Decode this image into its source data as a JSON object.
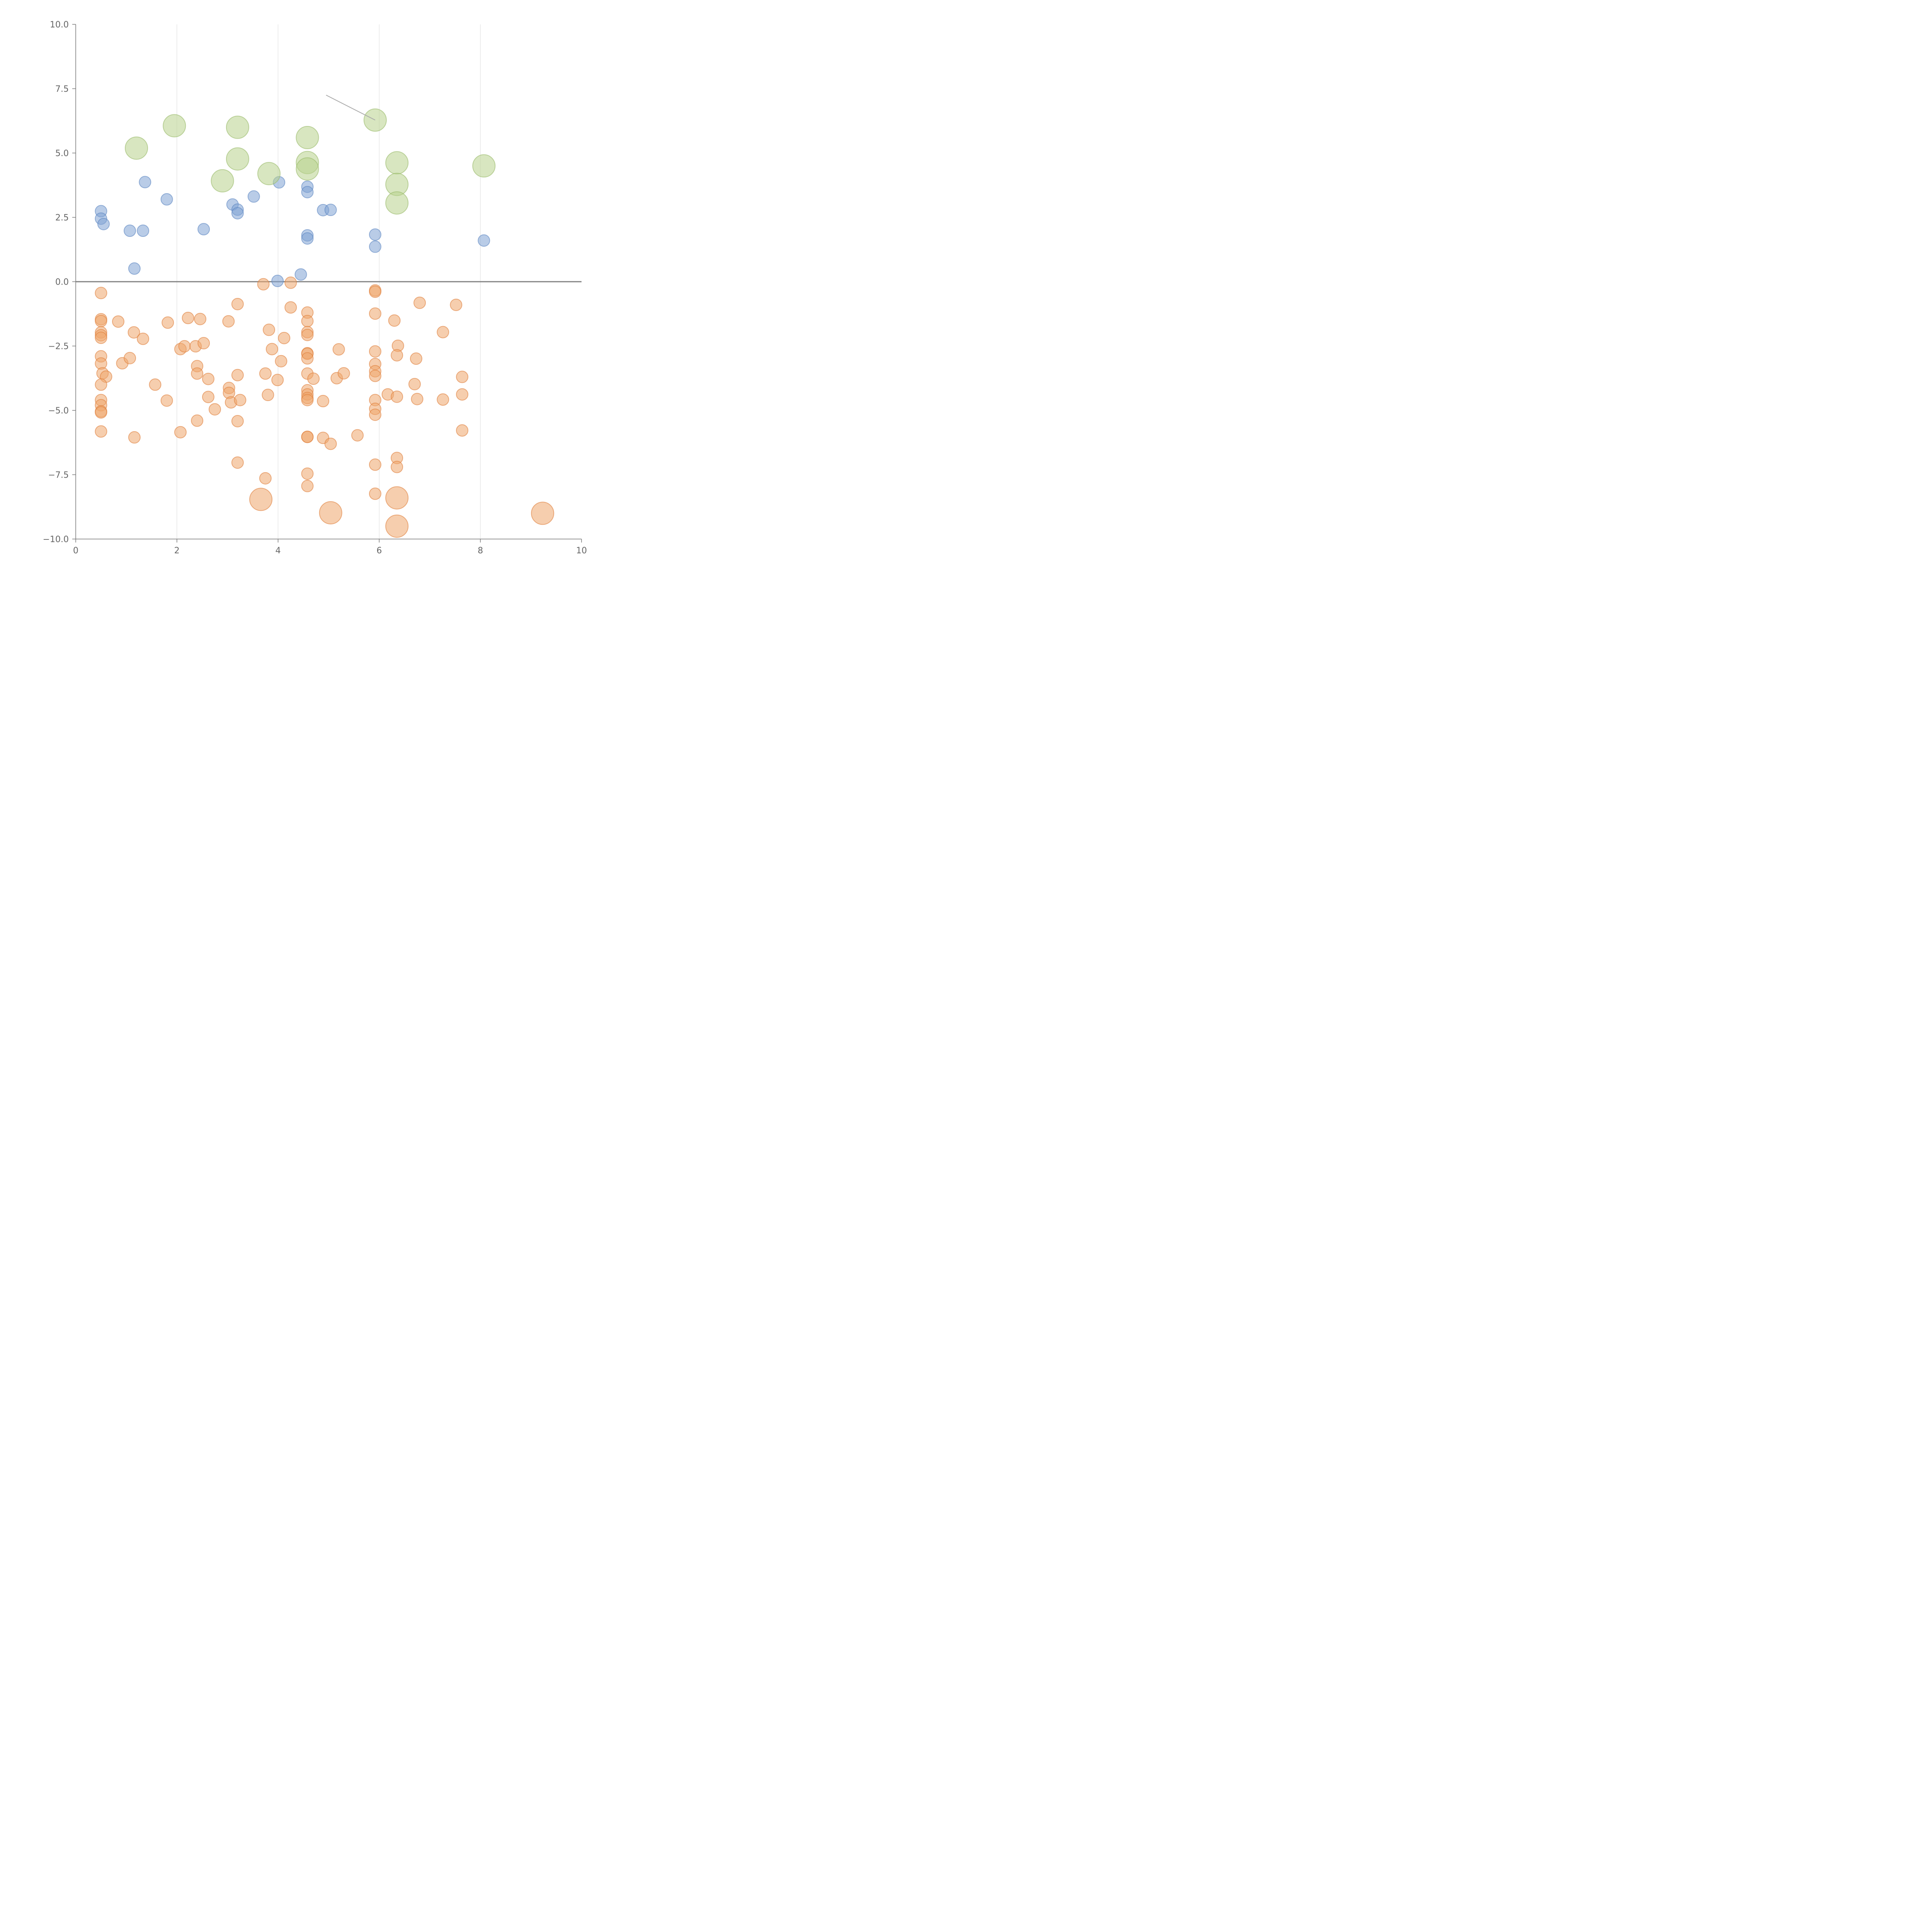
{
  "chart_data": {
    "type": "scatter",
    "subtype": "bubble",
    "title": "",
    "xlabel": "",
    "ylabel": "",
    "xlim": [
      0,
      10
    ],
    "ylim": [
      -10,
      10
    ],
    "xticks": [
      0,
      2,
      4,
      6,
      8,
      10
    ],
    "xtick_labels": [
      "0",
      "2",
      "4",
      "6",
      "8",
      "10"
    ],
    "yticks": [
      -10,
      -7.5,
      -5,
      -2.5,
      0,
      2.5,
      5,
      7.5,
      10
    ],
    "ytick_labels": [
      "−10.0",
      "−7.5",
      "−5.0",
      "−2.5",
      "0.0",
      "2.5",
      "5.0",
      "7.5",
      "10.0"
    ],
    "grid": {
      "vertical": true,
      "horizontal": false
    },
    "reference_line_y": 0,
    "legend": "none",
    "series": [
      {
        "color": "#7fa3d4",
        "stroke": "#5b86c2",
        "size": "small",
        "points": [
          [
            0.5,
            2.74
          ],
          [
            0.5,
            2.45
          ],
          [
            0.55,
            2.24
          ],
          [
            1.07,
            1.98
          ],
          [
            1.33,
            1.98
          ],
          [
            1.37,
            3.87
          ],
          [
            1.8,
            3.2
          ],
          [
            1.16,
            0.51
          ],
          [
            2.53,
            2.04
          ],
          [
            3.1,
            3.0
          ],
          [
            3.2,
            2.8
          ],
          [
            3.2,
            2.66
          ],
          [
            3.52,
            3.31
          ],
          [
            4.02,
            3.86
          ],
          [
            3.99,
            0.03
          ],
          [
            4.58,
            3.69
          ],
          [
            4.58,
            3.48
          ],
          [
            4.58,
            1.8
          ],
          [
            4.58,
            1.68
          ],
          [
            4.45,
            0.28
          ],
          [
            4.89,
            2.78
          ],
          [
            5.04,
            2.79
          ],
          [
            5.92,
            1.83
          ],
          [
            5.92,
            1.36
          ],
          [
            8.07,
            1.6
          ]
        ]
      },
      {
        "color": "#b8d18c",
        "stroke": "#98b968",
        "size": "large",
        "points": [
          [
            1.2,
            5.19
          ],
          [
            1.95,
            6.06
          ],
          [
            2.9,
            3.92
          ],
          [
            3.2,
            6.0
          ],
          [
            3.2,
            4.77
          ],
          [
            3.82,
            4.2
          ],
          [
            4.58,
            5.6
          ],
          [
            4.58,
            4.63
          ],
          [
            4.58,
            4.38
          ],
          [
            5.92,
            6.28
          ],
          [
            6.35,
            4.62
          ],
          [
            6.35,
            3.78
          ],
          [
            6.35,
            3.06
          ],
          [
            8.07,
            4.5
          ]
        ]
      },
      {
        "color": "#eea56c",
        "stroke": "#e07f3a",
        "size": "small",
        "points": [
          [
            0.5,
            -0.44
          ],
          [
            0.5,
            -1.46
          ],
          [
            0.5,
            -1.53
          ],
          [
            0.5,
            -1.97
          ],
          [
            0.5,
            -2.08
          ],
          [
            0.5,
            -2.18
          ],
          [
            0.5,
            -2.9
          ],
          [
            0.5,
            -3.18
          ],
          [
            0.53,
            -3.56
          ],
          [
            0.6,
            -3.69
          ],
          [
            0.5,
            -4.0
          ],
          [
            0.5,
            -4.6
          ],
          [
            0.5,
            -4.8
          ],
          [
            0.5,
            -5.04
          ],
          [
            0.5,
            -5.08
          ],
          [
            0.5,
            -5.82
          ],
          [
            0.84,
            -1.55
          ],
          [
            0.92,
            -3.17
          ],
          [
            1.07,
            -2.97
          ],
          [
            1.15,
            -1.97
          ],
          [
            1.33,
            -2.22
          ],
          [
            1.16,
            -6.05
          ],
          [
            1.57,
            -4.0
          ],
          [
            1.82,
            -1.59
          ],
          [
            1.8,
            -4.62
          ],
          [
            2.07,
            -2.62
          ],
          [
            2.15,
            -2.51
          ],
          [
            2.22,
            -1.41
          ],
          [
            2.37,
            -2.51
          ],
          [
            2.4,
            -3.28
          ],
          [
            2.4,
            -3.57
          ],
          [
            2.46,
            -1.45
          ],
          [
            2.53,
            -2.39
          ],
          [
            2.62,
            -3.78
          ],
          [
            2.62,
            -4.48
          ],
          [
            2.4,
            -5.4
          ],
          [
            2.07,
            -5.85
          ],
          [
            2.75,
            -4.96
          ],
          [
            3.02,
            -1.54
          ],
          [
            3.2,
            -0.87
          ],
          [
            3.2,
            -3.63
          ],
          [
            3.03,
            -4.13
          ],
          [
            3.03,
            -4.32
          ],
          [
            3.07,
            -4.69
          ],
          [
            3.25,
            -4.6
          ],
          [
            3.2,
            -5.42
          ],
          [
            3.2,
            -7.03
          ],
          [
            3.71,
            -0.1
          ],
          [
            3.82,
            -1.87
          ],
          [
            3.88,
            -2.62
          ],
          [
            3.75,
            -3.57
          ],
          [
            3.8,
            -4.4
          ],
          [
            3.75,
            -7.64
          ],
          [
            4.25,
            -0.04
          ],
          [
            4.25,
            -1.0
          ],
          [
            4.12,
            -2.19
          ],
          [
            4.06,
            -3.09
          ],
          [
            3.99,
            -3.82
          ],
          [
            4.58,
            -1.2
          ],
          [
            4.58,
            -1.53
          ],
          [
            4.58,
            -1.96
          ],
          [
            4.58,
            -2.07
          ],
          [
            4.58,
            -2.78
          ],
          [
            4.58,
            -2.8
          ],
          [
            4.58,
            -2.98
          ],
          [
            4.58,
            -3.57
          ],
          [
            4.7,
            -3.77
          ],
          [
            4.58,
            -4.22
          ],
          [
            4.58,
            -4.38
          ],
          [
            4.58,
            -4.52
          ],
          [
            4.58,
            -4.6
          ],
          [
            4.58,
            -6.03
          ],
          [
            4.58,
            -6.03
          ],
          [
            4.58,
            -7.46
          ],
          [
            4.58,
            -7.94
          ],
          [
            4.89,
            -4.64
          ],
          [
            4.89,
            -6.07
          ],
          [
            5.04,
            -6.3
          ],
          [
            5.2,
            -2.63
          ],
          [
            5.16,
            -3.75
          ],
          [
            5.3,
            -3.56
          ],
          [
            5.57,
            -5.97
          ],
          [
            5.92,
            -0.34
          ],
          [
            5.92,
            -0.39
          ],
          [
            5.92,
            -1.24
          ],
          [
            5.92,
            -2.71
          ],
          [
            5.92,
            -3.2
          ],
          [
            5.92,
            -3.48
          ],
          [
            5.92,
            -3.66
          ],
          [
            5.92,
            -4.6
          ],
          [
            5.92,
            -4.94
          ],
          [
            5.92,
            -5.17
          ],
          [
            5.92,
            -7.11
          ],
          [
            5.92,
            -8.24
          ],
          [
            6.17,
            -4.38
          ],
          [
            6.3,
            -1.51
          ],
          [
            6.37,
            -2.49
          ],
          [
            6.35,
            -2.86
          ],
          [
            6.35,
            -4.47
          ],
          [
            6.35,
            -6.85
          ],
          [
            6.35,
            -7.2
          ],
          [
            6.7,
            -3.98
          ],
          [
            6.73,
            -2.99
          ],
          [
            6.75,
            -4.56
          ],
          [
            6.8,
            -0.82
          ],
          [
            7.26,
            -1.96
          ],
          [
            7.26,
            -4.58
          ],
          [
            7.52,
            -0.9
          ],
          [
            7.64,
            -3.7
          ],
          [
            7.64,
            -4.38
          ],
          [
            7.64,
            -5.78
          ]
        ]
      },
      {
        "color": "#eea56c",
        "stroke": "#e07f3a",
        "size": "large",
        "points": [
          [
            3.66,
            -8.46
          ],
          [
            5.04,
            -8.98
          ],
          [
            6.35,
            -8.4
          ],
          [
            6.35,
            -9.5
          ],
          [
            9.23,
            -9.0
          ]
        ]
      }
    ],
    "annotations": [
      {
        "type": "leader-line",
        "from": [
          4.95,
          7.25
        ],
        "to": [
          5.92,
          6.28
        ]
      }
    ]
  }
}
